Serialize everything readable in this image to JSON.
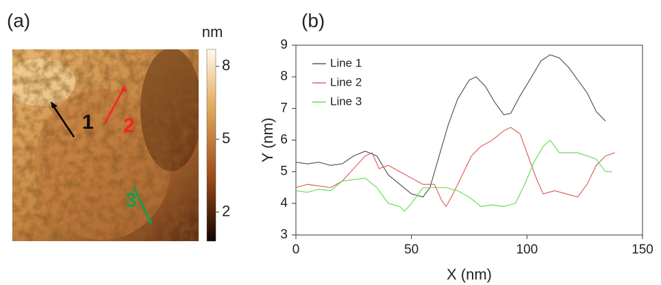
{
  "chart_data": [
    {
      "type": "image",
      "label": "(a)",
      "colorbar_label": "nm",
      "clim": [
        0.8,
        8.7
      ],
      "cticks": [
        2,
        5,
        8
      ],
      "annotations": [
        "1",
        "2",
        "3"
      ]
    },
    {
      "type": "line",
      "label": "(b)",
      "xlabel": "X (nm)",
      "ylabel": "Y (nm)",
      "xlim": [
        0,
        150
      ],
      "xticks": [
        0,
        50,
        100,
        150
      ],
      "ylim": [
        3,
        9
      ],
      "yticks": [
        3,
        4,
        5,
        6,
        7,
        8,
        9
      ],
      "legend": "upper left",
      "series": [
        {
          "name": "Line 1",
          "color": "#555555",
          "x": [
            0,
            5,
            10,
            15,
            20,
            25,
            30,
            35,
            40,
            45,
            50,
            55,
            58,
            62,
            66,
            70,
            75,
            78,
            82,
            86,
            90,
            93,
            97,
            102,
            106,
            110,
            114,
            118,
            122,
            126,
            130,
            134
          ],
          "values": [
            5.3,
            5.25,
            5.3,
            5.2,
            5.25,
            5.5,
            5.65,
            5.5,
            4.9,
            4.6,
            4.3,
            4.2,
            4.5,
            5.5,
            6.5,
            7.3,
            7.9,
            8.0,
            7.7,
            7.2,
            6.8,
            6.85,
            7.4,
            8.0,
            8.5,
            8.7,
            8.6,
            8.3,
            7.9,
            7.5,
            6.9,
            6.6
          ]
        },
        {
          "name": "Line 2",
          "color": "#e06060",
          "x": [
            0,
            5,
            10,
            15,
            20,
            25,
            30,
            33,
            36,
            40,
            45,
            50,
            55,
            60,
            63,
            65,
            68,
            72,
            76,
            80,
            85,
            90,
            93,
            97,
            100,
            104,
            107,
            112,
            117,
            122,
            126,
            130,
            134,
            138
          ],
          "values": [
            4.5,
            4.6,
            4.55,
            4.5,
            4.7,
            5.1,
            5.5,
            5.6,
            5.1,
            5.2,
            5.0,
            4.8,
            4.6,
            4.6,
            4.1,
            3.9,
            4.3,
            4.9,
            5.5,
            5.8,
            6.0,
            6.3,
            6.4,
            6.2,
            5.6,
            4.8,
            4.3,
            4.4,
            4.3,
            4.2,
            4.6,
            5.2,
            5.5,
            5.6
          ]
        },
        {
          "name": "Line 3",
          "color": "#66dd55",
          "x": [
            0,
            5,
            10,
            15,
            20,
            25,
            30,
            35,
            40,
            45,
            47,
            50,
            55,
            60,
            65,
            70,
            75,
            80,
            85,
            90,
            95,
            99,
            103,
            107,
            110,
            114,
            118,
            122,
            126,
            130,
            134,
            137
          ],
          "values": [
            4.4,
            4.35,
            4.45,
            4.4,
            4.7,
            4.75,
            4.8,
            4.5,
            4.0,
            3.9,
            3.75,
            4.0,
            4.5,
            4.5,
            4.5,
            4.4,
            4.2,
            3.9,
            3.95,
            3.9,
            4.0,
            4.6,
            5.3,
            5.8,
            6.0,
            5.6,
            5.6,
            5.6,
            5.5,
            5.4,
            5.0,
            5.0
          ]
        }
      ]
    }
  ]
}
